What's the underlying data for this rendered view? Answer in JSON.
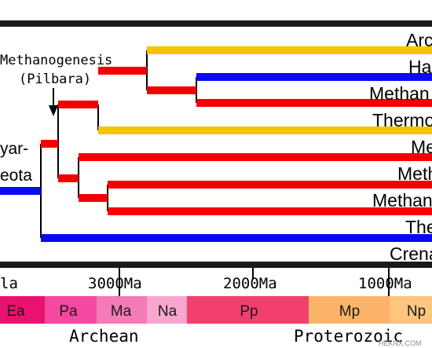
{
  "annotation": {
    "line1": "Methanogenesis",
    "line2": "(Pilbara)"
  },
  "left_labels": {
    "line1": "yar-",
    "line2": "eota"
  },
  "taxa": [
    {
      "label": "Arc",
      "color": "#f5c400"
    },
    {
      "label": "Ha",
      "color": "#0a0af0"
    },
    {
      "label": "Methan",
      "color": "#f50000"
    },
    {
      "label": "Thermo",
      "color": "#f5c400"
    },
    {
      "label": "Me",
      "color": "#f50000"
    },
    {
      "label": "Meth",
      "color": "#f50000"
    },
    {
      "label": "Methan",
      "color": "#f50000"
    },
    {
      "label": "The",
      "color": "#0a0af0"
    },
    {
      "label": "Crena",
      "color": "#f50000"
    }
  ],
  "time_axis": {
    "ticks": [
      "la",
      "3000Ma",
      "2000Ma",
      "1000Ma"
    ]
  },
  "geo_bar": {
    "segments": [
      {
        "label": "Ea",
        "color": "#e8136f"
      },
      {
        "label": "Pa",
        "color": "#f548a0"
      },
      {
        "label": "Ma",
        "color": "#f57ab8"
      },
      {
        "label": "Na",
        "color": "#f9a6cf"
      },
      {
        "label": "Pp",
        "color": "#f2406e"
      },
      {
        "label": "Mp",
        "color": "#fbb36a"
      },
      {
        "label": "Np",
        "color": "#fdc57e"
      }
    ],
    "eon_labels": [
      "Archean",
      "Proterozoic"
    ]
  },
  "watermark": "HEKNX.COM",
  "colors": {
    "red": "#f50000",
    "yellow": "#f5c400",
    "blue": "#0a0af0",
    "black": "#000000"
  }
}
